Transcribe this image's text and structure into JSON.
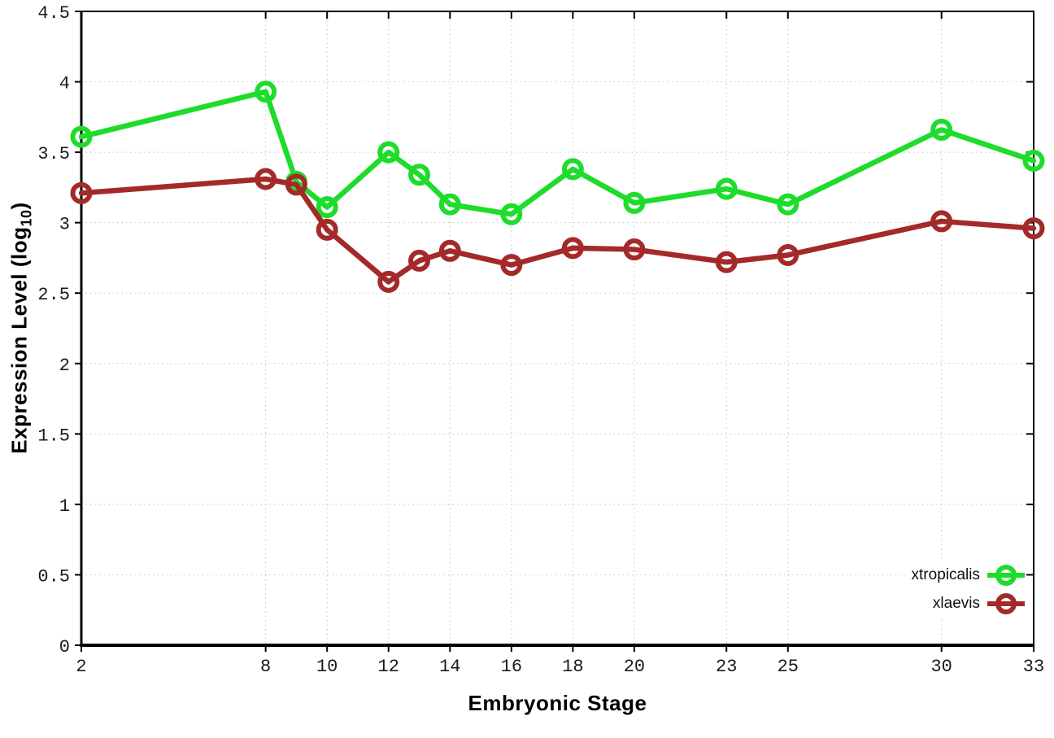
{
  "figure": {
    "background": "#ffffff",
    "xlabel": "Embryonic Stage",
    "ylabel_base": "Expression Level (log",
    "ylabel_sub": "10",
    "ylabel_close": ")"
  },
  "chart_data": {
    "type": "line",
    "title": "",
    "xlabel": "Embryonic Stage",
    "ylabel": "Expression Level (log10)",
    "x": [
      2,
      8,
      9,
      10,
      12,
      13,
      14,
      16,
      18,
      20,
      23,
      25,
      30,
      33
    ],
    "series": [
      {
        "name": "xtropicalis",
        "color": "#1edc2b",
        "values": [
          3.61,
          3.93,
          3.29,
          3.11,
          3.5,
          3.34,
          3.13,
          3.06,
          3.38,
          3.14,
          3.24,
          3.13,
          3.66,
          3.44
        ]
      },
      {
        "name": "xlaevis",
        "color": "#a42a2a",
        "values": [
          3.21,
          3.31,
          3.27,
          2.95,
          2.58,
          2.73,
          2.8,
          2.7,
          2.82,
          2.81,
          2.72,
          2.77,
          3.01,
          2.96
        ]
      }
    ],
    "xlim": [
      2,
      33
    ],
    "ylim": [
      0,
      4.5
    ],
    "x_ticks": [
      2,
      8,
      10,
      12,
      14,
      16,
      18,
      20,
      23,
      25,
      30,
      33
    ],
    "y_ticks": [
      0,
      0.5,
      1,
      1.5,
      2,
      2.5,
      3,
      3.5,
      4,
      4.5
    ],
    "grid": true,
    "grid_color": "#c4c4c4",
    "axis_color": "#000000",
    "tick_label_color": "#1a1a1a",
    "legend_position": "bottom-right"
  }
}
